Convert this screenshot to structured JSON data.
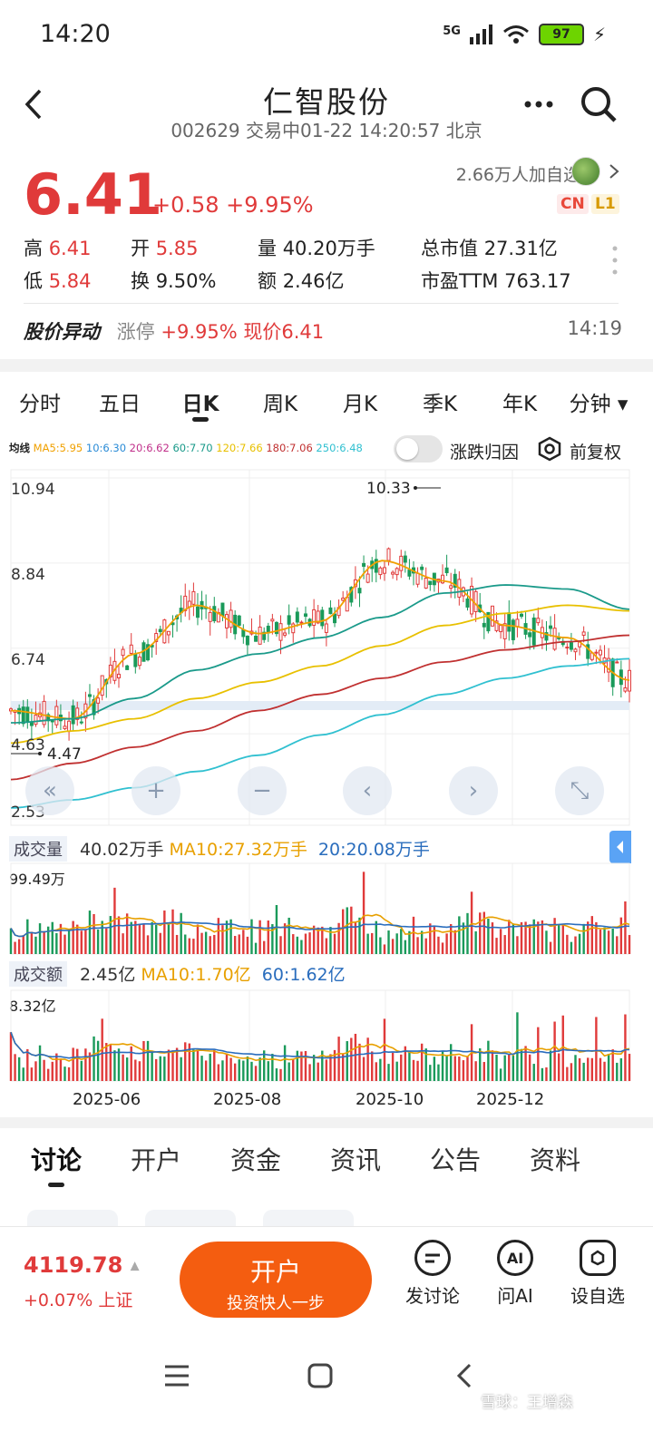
{
  "status": {
    "time": "14:20",
    "network": "5G",
    "battery": "97"
  },
  "header": {
    "title": "仁智股份",
    "subtitle": "002629 交易中01-22 14:20:57 北京"
  },
  "quote": {
    "price": "6.41",
    "change": "+0.58 +9.95%",
    "watchers": "2.66万人加自选",
    "tag_cn": "CN",
    "tag_l1": "L1",
    "fields": {
      "high_label": "高",
      "high": "6.41",
      "open_label": "开",
      "open": "5.85",
      "vol_label": "量",
      "vol": "40.20万手",
      "mcap_label": "总市值",
      "mcap": "27.31亿",
      "low_label": "低",
      "low": "5.84",
      "turnover_label": "换",
      "turnover": "9.50%",
      "amount_label": "额",
      "amount": "2.46亿",
      "pe_label": "市盈TTM",
      "pe": "763.17"
    }
  },
  "alert": {
    "title": "股价异动",
    "kind": "涨停",
    "pct": "+9.95%",
    "now": "现价6.41",
    "time": "14:19"
  },
  "ktabs": [
    "分时",
    "五日",
    "日K",
    "周K",
    "月K",
    "季K",
    "年K",
    "分钟 ▾"
  ],
  "active_ktab": "日K",
  "ma": {
    "label": "均线",
    "items": [
      {
        "text": "MA5:5.95",
        "color": "#f0a000"
      },
      {
        "text": "10:6.30",
        "color": "#2a8bd6"
      },
      {
        "text": "20:6.62",
        "color": "#c0308a"
      },
      {
        "text": "60:7.70",
        "color": "#1a9a8a"
      },
      {
        "text": "120:7.66",
        "color": "#e8c000"
      },
      {
        "text": "180:7.06",
        "color": "#c03030"
      },
      {
        "text": "250:6.48",
        "color": "#30c0d0"
      }
    ],
    "toggle_label": "涨跌归因",
    "adjust_label": "前复权"
  },
  "chart_data": {
    "type": "line",
    "title": "",
    "y_ticks": [
      "10.94",
      "8.84",
      "6.74",
      "4.63",
      "2.53"
    ],
    "ylim": [
      2.53,
      10.94
    ],
    "max_label": "10.33",
    "min_label": "4.47",
    "x_ticks": [
      "2025-06",
      "2025-08",
      "2025-10",
      "2025-12"
    ],
    "series": [
      {
        "name": "MA5",
        "color": "#f0a000",
        "x": [
          0,
          10,
          20,
          30,
          40,
          50,
          60,
          70,
          80,
          90,
          100
        ],
        "values": [
          5.2,
          5.0,
          6.6,
          7.8,
          7.1,
          7.4,
          8.9,
          8.4,
          7.3,
          7.0,
          5.95
        ]
      },
      {
        "name": "MA60",
        "color": "#1a9a8a",
        "x": [
          0,
          10,
          20,
          30,
          40,
          50,
          60,
          70,
          80,
          90,
          100
        ],
        "values": [
          4.9,
          5.0,
          5.5,
          6.2,
          6.6,
          7.0,
          7.5,
          8.1,
          8.3,
          8.2,
          7.7
        ]
      },
      {
        "name": "MA120",
        "color": "#e8c000",
        "x": [
          0,
          10,
          20,
          30,
          40,
          50,
          60,
          70,
          80,
          90,
          100
        ],
        "values": [
          4.4,
          4.7,
          5.0,
          5.5,
          5.9,
          6.3,
          6.8,
          7.3,
          7.6,
          7.8,
          7.66
        ]
      },
      {
        "name": "MA180",
        "color": "#c03030",
        "x": [
          0,
          10,
          20,
          30,
          40,
          50,
          60,
          70,
          80,
          90,
          100
        ],
        "values": [
          3.5,
          3.9,
          4.3,
          4.7,
          5.2,
          5.6,
          6.0,
          6.4,
          6.7,
          6.9,
          7.06
        ]
      },
      {
        "name": "MA250",
        "color": "#30c0d0",
        "x": [
          0,
          10,
          20,
          30,
          40,
          50,
          60,
          70,
          80,
          90,
          100
        ],
        "values": [
          2.8,
          3.0,
          3.3,
          3.7,
          4.1,
          4.6,
          5.1,
          5.6,
          6.0,
          6.3,
          6.48
        ]
      }
    ]
  },
  "volume": {
    "label": "成交量",
    "now": "40.02万手",
    "ma10": "MA10:27.32万手",
    "ma20": "20:20.08万手",
    "max": "99.49万"
  },
  "amount": {
    "label": "成交额",
    "now": "2.45亿",
    "ma10": "MA10:1.70亿",
    "ma60": "60:1.62亿",
    "max": "8.32亿"
  },
  "bottom_tabs": [
    "讨论",
    "开户",
    "资金",
    "资讯",
    "公告",
    "资料"
  ],
  "index": {
    "value": "4119.78",
    "change": "+0.07% 上证"
  },
  "open_account": {
    "title": "开户",
    "sub": "投资快人一步"
  },
  "actions": [
    {
      "label": "发讨论",
      "icon": "chat-icon"
    },
    {
      "label": "问AI",
      "icon": "ai-icon"
    },
    {
      "label": "设自选",
      "icon": "watchlist-icon"
    }
  ],
  "watermark": "雪球：王增森"
}
